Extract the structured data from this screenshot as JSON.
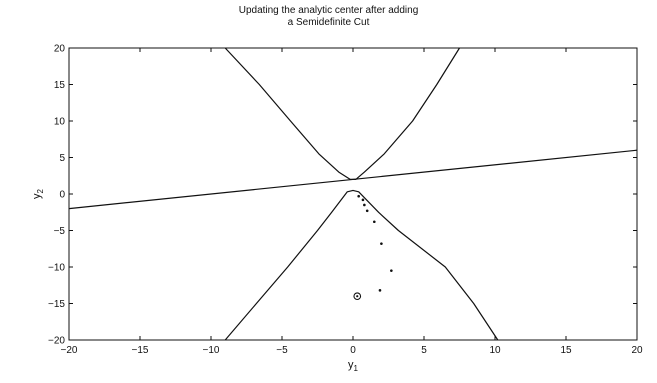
{
  "chart_data": {
    "type": "line",
    "title_lines": [
      "Updating the analytic center after adding",
      "a Semidefinite Cut"
    ],
    "xlabel": "y",
    "xlabel_sub": "1",
    "ylabel": "y",
    "ylabel_sub": "2",
    "xlim": [
      -20,
      20
    ],
    "ylim": [
      -20,
      20
    ],
    "x_ticks": [
      -20,
      -15,
      -10,
      -5,
      0,
      5,
      10,
      15,
      20
    ],
    "y_ticks": [
      -20,
      -15,
      -10,
      -5,
      0,
      5,
      10,
      15,
      20
    ],
    "grid": false,
    "legend": "none",
    "colors": {
      "line": "#111111",
      "axes": "#111111",
      "background": "#ffffff"
    },
    "series": [
      {
        "values": [
          [
            -20,
            -2
          ],
          [
            20,
            6
          ]
        ]
      },
      {
        "values": [
          [
            -9,
            20
          ],
          [
            -6.6,
            15
          ],
          [
            -4.4,
            10
          ],
          [
            -2.4,
            5.5
          ],
          [
            -1,
            3
          ],
          [
            -0.2,
            2
          ],
          [
            0.2,
            2
          ],
          [
            0.8,
            3
          ],
          [
            2.2,
            5.5
          ],
          [
            4.2,
            10
          ],
          [
            5.9,
            15
          ],
          [
            7.5,
            20
          ]
        ]
      },
      {
        "values": [
          [
            -9,
            -20
          ],
          [
            -6.8,
            -15
          ],
          [
            -4.6,
            -10
          ],
          [
            -2.5,
            -5
          ],
          [
            -1.5,
            -2.5
          ],
          [
            -0.4,
            0.3
          ],
          [
            0,
            0.5
          ],
          [
            0.4,
            0.3
          ],
          [
            1.8,
            -2.5
          ],
          [
            3.2,
            -5
          ],
          [
            6.5,
            -10
          ],
          [
            8.5,
            -15
          ],
          [
            10.2,
            -20
          ]
        ]
      }
    ],
    "iterates": [
      [
        0.4,
        -0.3
      ],
      [
        0.7,
        -0.8
      ],
      [
        0.8,
        -1.5
      ],
      [
        1,
        -2.3
      ],
      [
        1.5,
        -3.8
      ],
      [
        2,
        -6.8
      ],
      [
        2.7,
        -10.5
      ],
      [
        1.9,
        -13.2
      ]
    ],
    "analytic_center": [
      0.3,
      -14
    ]
  }
}
